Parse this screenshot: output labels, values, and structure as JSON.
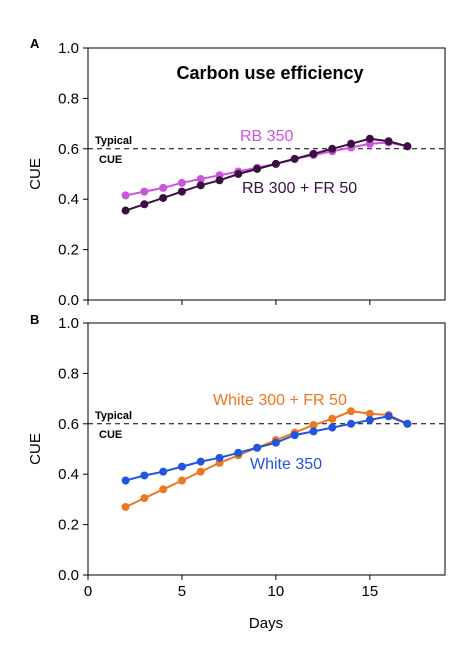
{
  "chart_data": [
    {
      "type": "line",
      "panel": "A",
      "title": "Carbon use efficiency",
      "xlabel": "",
      "ylabel": "CUE",
      "xlim": [
        0,
        19
      ],
      "ylim": [
        0.0,
        1.0
      ],
      "xticks": [
        0,
        5,
        10,
        15
      ],
      "yticks": [
        0.0,
        0.2,
        0.4,
        0.6,
        0.8,
        1.0
      ],
      "ytick_labels": [
        "0.0",
        "0.2",
        "0.4",
        "0.6",
        "0.8",
        "1.0"
      ],
      "xtick_labels": [],
      "grid": false,
      "reference_line": {
        "y": 0.6,
        "label_top": "Typical",
        "label_bottom": "CUE"
      },
      "series": [
        {
          "name": "RB 350",
          "color": "#cc55dd",
          "x": [
            2,
            3,
            4,
            5,
            6,
            7,
            8,
            9,
            10,
            11,
            12,
            13,
            14,
            15,
            16,
            17
          ],
          "y": [
            0.415,
            0.43,
            0.445,
            0.465,
            0.48,
            0.495,
            0.51,
            0.525,
            0.54,
            0.56,
            0.575,
            0.59,
            0.605,
            0.62,
            0.625,
            0.61
          ]
        },
        {
          "name": "RB 300 + FR 50",
          "color": "#3a1040",
          "x": [
            2,
            3,
            4,
            5,
            6,
            7,
            8,
            9,
            10,
            11,
            12,
            13,
            14,
            15,
            16,
            17
          ],
          "y": [
            0.355,
            0.38,
            0.405,
            0.43,
            0.455,
            0.475,
            0.5,
            0.52,
            0.54,
            0.56,
            0.58,
            0.6,
            0.62,
            0.64,
            0.63,
            0.61
          ]
        }
      ]
    },
    {
      "type": "line",
      "panel": "B",
      "title": "",
      "xlabel": "Days",
      "ylabel": "CUE",
      "xlim": [
        0,
        19
      ],
      "ylim": [
        0.0,
        1.0
      ],
      "xticks": [
        0,
        5,
        10,
        15
      ],
      "xtick_labels": [
        "0",
        "5",
        "10",
        "15"
      ],
      "yticks": [
        0.0,
        0.2,
        0.4,
        0.6,
        0.8,
        1.0
      ],
      "ytick_labels": [
        "0.0",
        "0.2",
        "0.4",
        "0.6",
        "0.8",
        "1.0"
      ],
      "grid": false,
      "reference_line": {
        "y": 0.6,
        "label_top": "Typical",
        "label_bottom": "CUE"
      },
      "series": [
        {
          "name": "White 300 + FR 50",
          "color": "#ee7722",
          "x": [
            2,
            3,
            4,
            5,
            6,
            7,
            8,
            9,
            10,
            11,
            12,
            13,
            14,
            15,
            16,
            17
          ],
          "y": [
            0.27,
            0.305,
            0.34,
            0.375,
            0.41,
            0.445,
            0.475,
            0.505,
            0.535,
            0.565,
            0.595,
            0.62,
            0.65,
            0.64,
            0.635,
            0.6
          ]
        },
        {
          "name": "White 350",
          "color": "#2255dd",
          "x": [
            2,
            3,
            4,
            5,
            6,
            7,
            8,
            9,
            10,
            11,
            12,
            13,
            14,
            15,
            16,
            17
          ],
          "y": [
            0.375,
            0.395,
            0.41,
            0.43,
            0.45,
            0.465,
            0.485,
            0.505,
            0.525,
            0.555,
            0.57,
            0.585,
            0.6,
            0.615,
            0.63,
            0.6
          ]
        }
      ]
    }
  ]
}
